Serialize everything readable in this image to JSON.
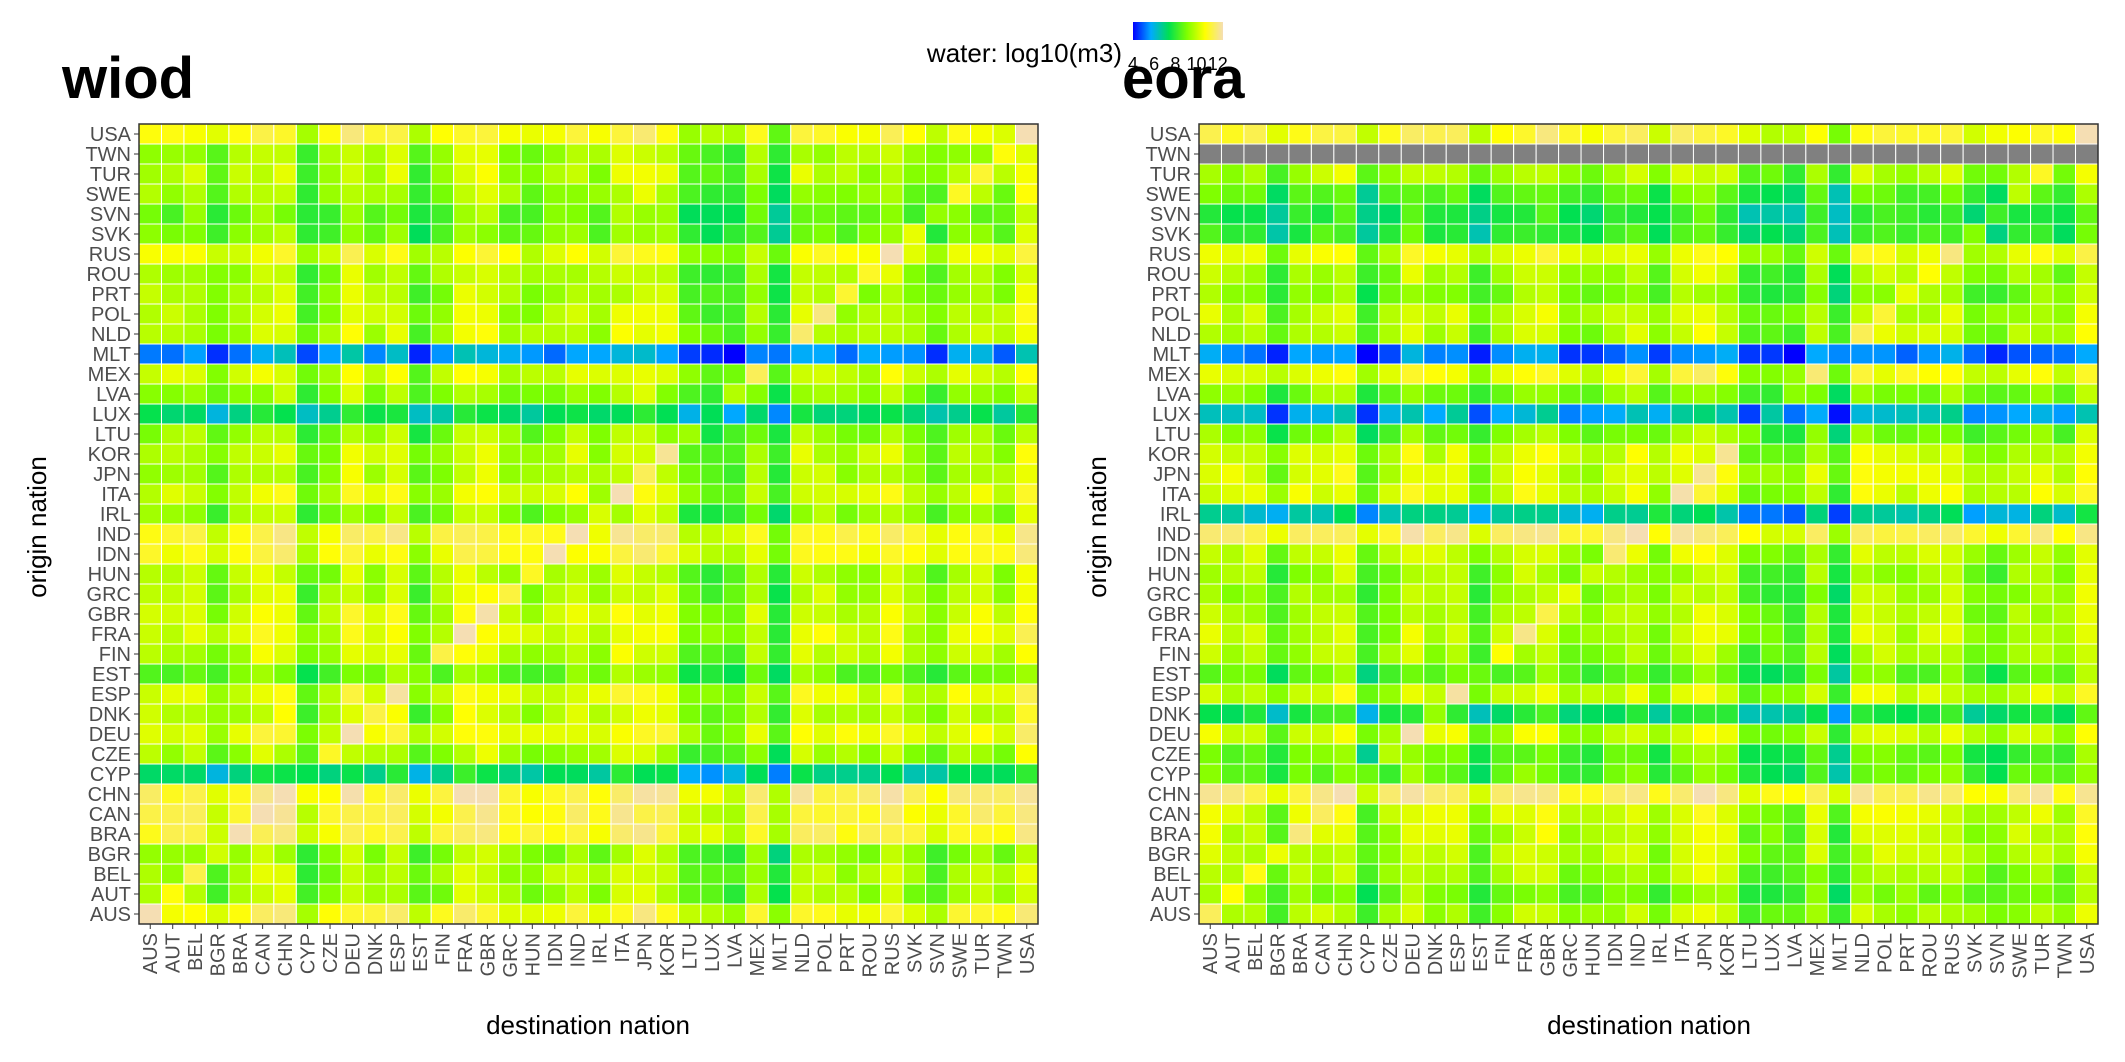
{
  "legend": {
    "title": "water: log10(m3)",
    "ticks": [
      "4",
      "6",
      "8",
      "10",
      "12"
    ],
    "range": [
      4,
      12.5
    ],
    "colors": [
      "#0000ff",
      "#00aaff",
      "#00e050",
      "#7fff00",
      "#ffff00",
      "#f5deb3"
    ]
  },
  "chart_data": [
    {
      "type": "heatmap",
      "title": "wiod",
      "xlabel": "destination nation",
      "ylabel": "origin nation",
      "x_categories": [
        "AUS",
        "AUT",
        "BEL",
        "BGR",
        "BRA",
        "CAN",
        "CHN",
        "CYP",
        "CZE",
        "DEU",
        "DNK",
        "ESP",
        "EST",
        "FIN",
        "FRA",
        "GBR",
        "GRC",
        "HUN",
        "IDN",
        "IND",
        "IRL",
        "ITA",
        "JPN",
        "KOR",
        "LTU",
        "LUX",
        "LVA",
        "MEX",
        "MLT",
        "NLD",
        "POL",
        "PRT",
        "ROU",
        "RUS",
        "SVK",
        "SVN",
        "SWE",
        "TUR",
        "TWN",
        "USA"
      ],
      "y_categories": [
        "AUS",
        "AUT",
        "BEL",
        "BGR",
        "BRA",
        "CAN",
        "CHN",
        "CYP",
        "CZE",
        "DEU",
        "DNK",
        "ESP",
        "EST",
        "FIN",
        "FRA",
        "GBR",
        "GRC",
        "HUN",
        "IDN",
        "IND",
        "IRL",
        "ITA",
        "JPN",
        "KOR",
        "LTU",
        "LUX",
        "LVA",
        "MEX",
        "MLT",
        "NLD",
        "POL",
        "PRT",
        "ROU",
        "RUS",
        "SVK",
        "SVN",
        "SWE",
        "TUR",
        "TWN",
        "USA"
      ],
      "origin_level": {
        "USA": 10.6,
        "TWN": 9.3,
        "TUR": 9.4,
        "SWE": 9.1,
        "SVN": 8.5,
        "SVK": 8.6,
        "RUS": 10.2,
        "ROU": 9.3,
        "PRT": 9.2,
        "POL": 9.5,
        "NLD": 9.5,
        "MLT": 5.2,
        "MEX": 9.8,
        "LVA": 8.9,
        "LUX": 6.8,
        "LTU": 9.0,
        "KOR": 9.5,
        "JPN": 9.3,
        "ITA": 9.8,
        "IRL": 9.0,
        "IND": 10.9,
        "IDN": 10.6,
        "HUN": 9.3,
        "GRC": 9.4,
        "GBR": 9.8,
        "FRA": 10.0,
        "FIN": 9.5,
        "EST": 8.5,
        "ESP": 10.0,
        "DNK": 9.5,
        "DEU": 10.2,
        "CZE": 9.2,
        "CYP": 6.8,
        "CHN": 11.2,
        "CAN": 10.9,
        "BRA": 11.0,
        "BGR": 9.0,
        "BEL": 9.3,
        "AUT": 9.2,
        "AUS": 10.6
      },
      "destination_level": {
        "AUS": 0.4,
        "AUT": 0.3,
        "BEL": 0.5,
        "BGR": -0.5,
        "BRA": 0.3,
        "CAN": 0.8,
        "CHN": 0.9,
        "CYP": -0.9,
        "CZE": 0.0,
        "DEU": 1.0,
        "DNK": 0.3,
        "ESP": 0.8,
        "EST": -0.9,
        "FIN": 0.1,
        "FRA": 1.0,
        "GBR": 1.0,
        "GRC": 0.2,
        "HUN": -0.1,
        "IDN": 0.3,
        "IND": 0.6,
        "IRL": 0.1,
        "ITA": 0.9,
        "JPN": 1.0,
        "KOR": 0.7,
        "LTU": -0.8,
        "LUX": -1.0,
        "LVA": -1.0,
        "MEX": 0.3,
        "MLT": -1.6,
        "NLD": 0.7,
        "POL": 0.5,
        "PRT": 0.3,
        "ROU": 0.2,
        "RUS": 0.8,
        "SVK": 0.0,
        "SVN": -0.5,
        "SWE": 0.4,
        "TUR": 0.5,
        "TWN": 0.1,
        "USA": 1.3
      },
      "value_range": [
        4.5,
        12.3
      ]
    },
    {
      "type": "heatmap",
      "title": "eora",
      "xlabel": "destination nation",
      "ylabel": "origin nation",
      "x_categories": [
        "AUS",
        "AUT",
        "BEL",
        "BGR",
        "BRA",
        "CAN",
        "CHN",
        "CYP",
        "CZE",
        "DEU",
        "DNK",
        "ESP",
        "EST",
        "FIN",
        "FRA",
        "GBR",
        "GRC",
        "HUN",
        "IDN",
        "IND",
        "IRL",
        "ITA",
        "JPN",
        "KOR",
        "LTU",
        "LUX",
        "LVA",
        "MEX",
        "MLT",
        "NLD",
        "POL",
        "PRT",
        "ROU",
        "RUS",
        "SVK",
        "SVN",
        "SWE",
        "TUR",
        "TWN",
        "USA"
      ],
      "y_categories": [
        "AUS",
        "AUT",
        "BEL",
        "BGR",
        "BRA",
        "CAN",
        "CHN",
        "CYP",
        "CZE",
        "DEU",
        "DNK",
        "ESP",
        "EST",
        "FIN",
        "FRA",
        "GBR",
        "GRC",
        "HUN",
        "IDN",
        "IND",
        "IRL",
        "ITA",
        "JPN",
        "KOR",
        "LTU",
        "LUX",
        "LVA",
        "MEX",
        "MLT",
        "NLD",
        "POL",
        "PRT",
        "ROU",
        "RUS",
        "SVK",
        "SVN",
        "SWE",
        "TUR",
        "TWN",
        "USA"
      ],
      "missing_origin": "TWN",
      "missing_color": "#808080",
      "origin_level": {
        "USA": 10.9,
        "TWN": null,
        "TUR": 9.4,
        "SWE": 8.3,
        "SVN": 7.6,
        "SVK": 7.8,
        "RUS": 10.2,
        "ROU": 9.3,
        "PRT": 9.0,
        "POL": 9.6,
        "NLD": 9.6,
        "MLT": 5.0,
        "MEX": 10.4,
        "LVA": 8.8,
        "LUX": 5.8,
        "LTU": 8.8,
        "KOR": 9.8,
        "JPN": 10.0,
        "ITA": 10.0,
        "IRL": 6.3,
        "IND": 11.3,
        "IDN": 9.7,
        "HUN": 9.2,
        "GRC": 9.2,
        "GBR": 9.5,
        "FRA": 9.6,
        "FIN": 9.3,
        "EST": 8.4,
        "ESP": 9.8,
        "DNK": 7.4,
        "DEU": 9.8,
        "CZE": 8.4,
        "CYP": 8.4,
        "CHN": 11.5,
        "CAN": 9.9,
        "BRA": 9.8,
        "BGR": 9.6,
        "BEL": 9.3,
        "AUT": 8.8,
        "AUS": 9.4
      },
      "destination_level": {
        "AUS": 0.5,
        "AUT": 0.2,
        "BEL": 0.3,
        "BGR": -0.9,
        "BRA": 0.3,
        "CAN": 0.5,
        "CHN": 0.8,
        "CYP": -1.2,
        "CZE": -0.1,
        "DEU": 0.8,
        "DNK": 0.3,
        "ESP": 0.5,
        "EST": -0.9,
        "FIN": 0.1,
        "FRA": 0.6,
        "GBR": 0.7,
        "GRC": -0.1,
        "HUN": -0.3,
        "IDN": 0.3,
        "IND": 0.6,
        "IRL": -0.4,
        "ITA": 0.6,
        "JPN": 0.9,
        "KOR": 0.6,
        "LTU": -0.8,
        "LUX": -0.8,
        "LVA": -1.0,
        "MEX": 0.3,
        "MLT": -1.6,
        "NLD": 0.5,
        "POL": 0.5,
        "PRT": 0.3,
        "ROU": 0.3,
        "RUS": 0.6,
        "SVK": -0.3,
        "SVN": -0.6,
        "SWE": 0.1,
        "TUR": 0.4,
        "TWN": -0.2,
        "USA": 1.1
      },
      "value_range": [
        4.5,
        12.3
      ]
    }
  ]
}
